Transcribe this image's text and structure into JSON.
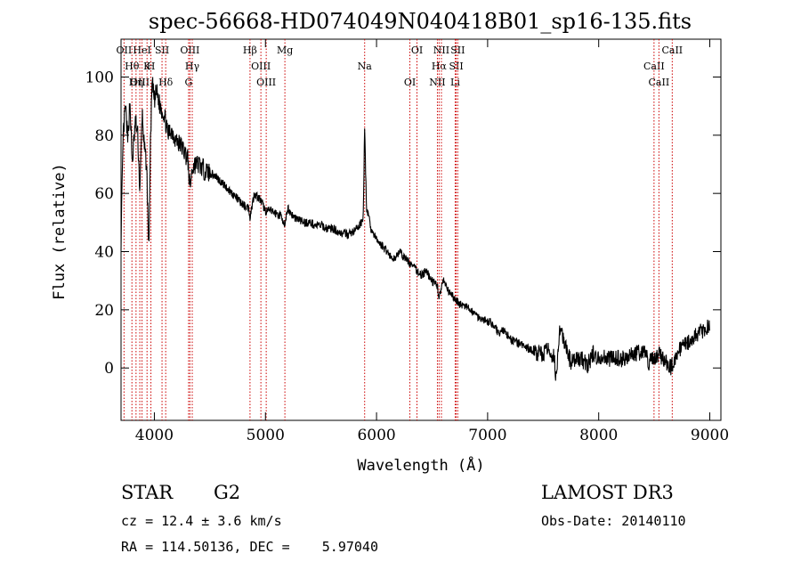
{
  "chart_data": {
    "type": "line",
    "title": "spec-56668-HD074049N040418B01_sp16-135.fits",
    "xlabel": "Wavelength (Å)",
    "ylabel": "Flux (relative)",
    "xlim": [
      3700,
      9100
    ],
    "ylim": [
      -18,
      113
    ],
    "x_ticks": [
      4000,
      5000,
      6000,
      7000,
      8000,
      9000
    ],
    "y_ticks": [
      0,
      20,
      40,
      60,
      80,
      100
    ],
    "line_color": "#000000",
    "marker_color": "#cc0000",
    "series": [
      {
        "x": [
          3700,
          3720,
          3740,
          3760,
          3780,
          3800,
          3830,
          3850,
          3870,
          3890,
          3910,
          3930,
          3950,
          3965,
          3980,
          4000,
          4020,
          4050,
          4080,
          4101,
          4120,
          4150,
          4200,
          4250,
          4300,
          4320,
          4340,
          4360,
          4400,
          4450,
          4500,
          4550,
          4600,
          4650,
          4700,
          4750,
          4800,
          4850,
          4861,
          4900,
          4950,
          5000,
          5050,
          5100,
          5150,
          5175,
          5200,
          5250,
          5300,
          5350,
          5400,
          5450,
          5500,
          5550,
          5600,
          5650,
          5700,
          5750,
          5800,
          5850,
          5880,
          5893,
          5910,
          5950,
          6000,
          6050,
          6100,
          6150,
          6200,
          6250,
          6300,
          6350,
          6400,
          6450,
          6500,
          6550,
          6563,
          6600,
          6650,
          6700,
          6750,
          6800,
          6850,
          6900,
          6950,
          7000,
          7050,
          7100,
          7150,
          7200,
          7250,
          7300,
          7350,
          7400,
          7450,
          7500,
          7550,
          7600,
          7620,
          7650,
          7700,
          7750,
          7800,
          7850,
          7900,
          7950,
          8000,
          8050,
          8100,
          8150,
          8200,
          8250,
          8300,
          8350,
          8400,
          8450,
          8500,
          8542,
          8600,
          8650,
          8662,
          8700,
          8750,
          8800,
          8850,
          8900,
          8950,
          9000
        ],
        "y": [
          44,
          80,
          90,
          78,
          92,
          70,
          85,
          80,
          60,
          88,
          75,
          70,
          40,
          78,
          98,
          92,
          95,
          90,
          88,
          85,
          80,
          82,
          78,
          76,
          72,
          62,
          68,
          70,
          70,
          68,
          67,
          66,
          64,
          62,
          60,
          58,
          56,
          55,
          52,
          60,
          58,
          54,
          54,
          53,
          52,
          48,
          55,
          52,
          51,
          50,
          50,
          49,
          49,
          48,
          48,
          47,
          46,
          46,
          47,
          49,
          52,
          82,
          55,
          48,
          44,
          42,
          40,
          37,
          40,
          38,
          36,
          34,
          32,
          33,
          30,
          28,
          24,
          30,
          26,
          24,
          22,
          21,
          20,
          18,
          17,
          16,
          15,
          12,
          13,
          10,
          9,
          8,
          7,
          6,
          5,
          5,
          6,
          4,
          -5,
          14,
          7,
          2,
          3,
          3,
          1,
          5,
          3,
          4,
          3,
          4,
          3,
          4,
          5,
          5,
          6,
          2,
          3,
          5,
          2,
          0,
          1,
          5,
          7,
          9,
          10,
          12,
          13,
          15
        ]
      }
    ],
    "markers": [
      {
        "name": "OII",
        "x": 3727
      },
      {
        "name": "Hθ",
        "x": 3798
      },
      {
        "name": "OIII",
        "x": 3869
      },
      {
        "name": "HeI",
        "x": 3889
      },
      {
        "name": "K",
        "x": 3934
      },
      {
        "name": "Hη",
        "x": 3835
      },
      {
        "name": "SII",
        "x": 4069
      },
      {
        "name": "H",
        "x": 3969
      },
      {
        "name": "Hδ",
        "x": 4102
      },
      {
        "name": "OIII",
        "x": 4320
      },
      {
        "name": "Hγ",
        "x": 4341
      },
      {
        "name": "G",
        "x": 4308
      },
      {
        "name": "Hβ",
        "x": 4861
      },
      {
        "name": "OIII",
        "x": 4959
      },
      {
        "name": "OIII",
        "x": 5007
      },
      {
        "name": "Mg",
        "x": 5175
      },
      {
        "name": "Na",
        "x": 5893
      },
      {
        "name": "OI",
        "x": 6300
      },
      {
        "name": "OI",
        "x": 6364
      },
      {
        "name": "Hα",
        "x": 6563
      },
      {
        "name": "NII",
        "x": 6548
      },
      {
        "name": "NII",
        "x": 6584
      },
      {
        "name": "SII",
        "x": 6717
      },
      {
        "name": "Li",
        "x": 6708
      },
      {
        "name": "SII",
        "x": 6731
      },
      {
        "name": "CaII",
        "x": 8498
      },
      {
        "name": "CaII",
        "x": 8542
      },
      {
        "name": "CaII",
        "x": 8662
      }
    ]
  },
  "info": {
    "object_class": "STAR",
    "subclass": "G2",
    "survey": "LAMOST DR3",
    "cz": "cz = 12.4 ± 3.6 km/s",
    "obs_date": "Obs-Date: 20140110",
    "coords": "RA = 114.50136, DEC =    5.97040"
  }
}
